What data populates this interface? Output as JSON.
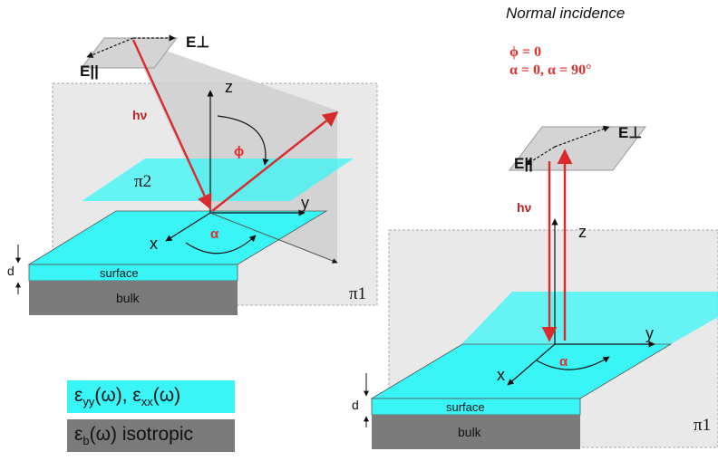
{
  "title": "Normal incidence",
  "conditions": {
    "phi": "ϕ = 0",
    "alpha": "α = 0, α = 90°"
  },
  "left_diagram": {
    "e_perp": "E⊥",
    "e_par": "E||",
    "hv": "hν",
    "z": "z",
    "phi": "ϕ",
    "pi2": "π2",
    "y": "y",
    "x": "x",
    "alpha": "α",
    "d": "d",
    "surface": "surface",
    "bulk": "bulk",
    "pi1": "π1"
  },
  "right_diagram": {
    "e_perp": "E⊥",
    "e_par": "E||",
    "hv": "hν",
    "z": "z",
    "y": "y",
    "x": "x",
    "alpha": "α",
    "d": "d",
    "surface": "surface",
    "bulk": "bulk",
    "pi1": "π1"
  },
  "legend": {
    "surface_eps": {
      "eps1": "ε",
      "sub1": "yy",
      "mid": "(ω), ε",
      "sub2": "xx",
      "end": "(ω)"
    },
    "bulk_eps": {
      "eps": "ε",
      "sub": "b",
      "end": "(ω) isotropic"
    }
  },
  "colors": {
    "surface": "#39f5f5",
    "bulk": "#7b7b7b",
    "plane": "#d9d9d9",
    "beam": "#d92b2b",
    "highlight_text": "#e03030"
  }
}
